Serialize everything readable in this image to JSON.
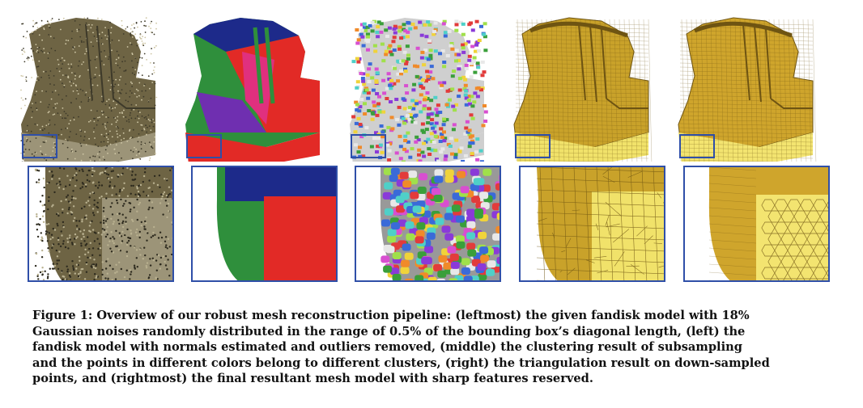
{
  "panels": [
    {
      "id": "leftmost",
      "model": "fandisk",
      "state": "noisy point cloud",
      "colors": {
        "main": "#6e6444",
        "side": "#9c9478",
        "top": "#3e3a2a"
      }
    },
    {
      "id": "left",
      "model": "fandisk",
      "state": "normals estimated, outliers removed",
      "colors": {
        "blue": "#1d2a8a",
        "red": "#e22a26",
        "green": "#2f8f3c",
        "pink": "#e0307e",
        "purple": "#6f2fb0"
      }
    },
    {
      "id": "middle",
      "model": "fandisk",
      "state": "clustering result of subsampling",
      "colors": {
        "palette": [
          "#e23b3b",
          "#3a9f3a",
          "#f0d33a",
          "#3a6ad8",
          "#d84fd0",
          "#4fd0c8",
          "#f08a2a",
          "#8a3ad8",
          "#a0e04a",
          "#e8e8e8"
        ]
      }
    },
    {
      "id": "right",
      "model": "fandisk",
      "state": "triangulation on down-sampled points",
      "colors": {
        "main": "#c9a22a",
        "light": "#f1e26a",
        "dark": "#6e5412"
      }
    },
    {
      "id": "rightmost",
      "model": "fandisk",
      "state": "final mesh with sharp features",
      "colors": {
        "main": "#cfa52c",
        "light": "#f3e470",
        "dark": "#6e5412"
      }
    }
  ],
  "caption": {
    "lines": [
      "Figure 1: Overview of our robust mesh reconstruction pipeline: (leftmost) the given fandisk model with 18%",
      "Gaussian noises randomly distributed in the range of 0.5% of the bounding box’s diagonal length, (left) the",
      "fandisk model with normals estimated and outliers removed, (middle) the clustering result of subsampling",
      "and the points in different colors belong to different clusters, (right) the triangulation result on down-sampled",
      "points, and (rightmost) the final resultant mesh model with sharp features reserved."
    ]
  },
  "highlight_color": "#2f4fa8"
}
